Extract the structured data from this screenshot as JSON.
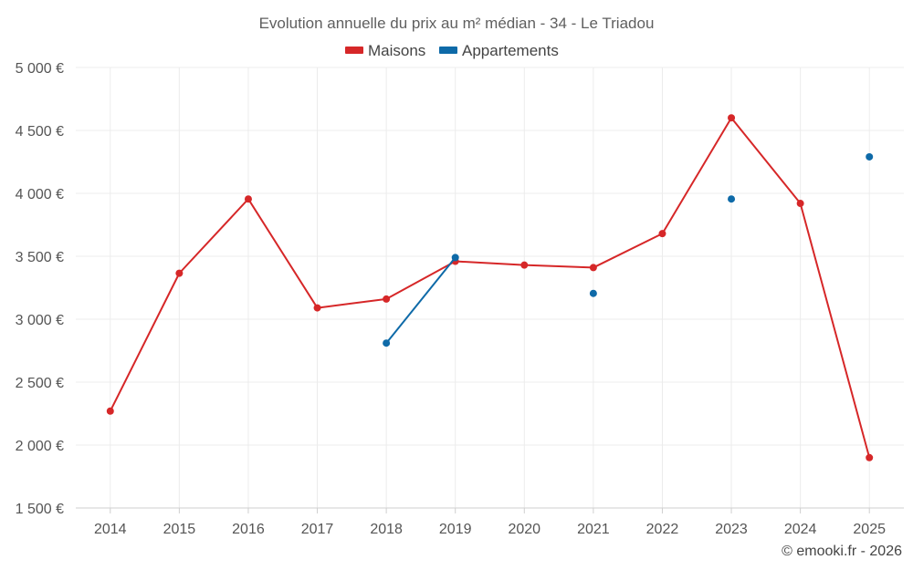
{
  "chart_data": {
    "type": "line",
    "title": "Evolution annuelle du prix au m² médian - 34 - Le Triadou",
    "categories": [
      "2014",
      "2015",
      "2016",
      "2017",
      "2018",
      "2019",
      "2020",
      "2021",
      "2022",
      "2023",
      "2024",
      "2025"
    ],
    "y_ticks": [
      1500,
      2000,
      2500,
      3000,
      3500,
      4000,
      4500,
      5000
    ],
    "y_tick_labels": [
      "1 500 €",
      "2 000 €",
      "2 500 €",
      "3 000 €",
      "3 500 €",
      "4 000 €",
      "4 500 €",
      "5 000 €"
    ],
    "ylim": [
      1500,
      5000
    ],
    "grid": true,
    "legend_position": "top-center",
    "series": [
      {
        "name": "Maisons",
        "color": "#d62728",
        "values": [
          2270,
          3365,
          3955,
          3090,
          3160,
          3460,
          3430,
          3410,
          3680,
          4600,
          3920,
          1900
        ]
      },
      {
        "name": "Appartements",
        "color": "#0e6aa8",
        "values": [
          null,
          null,
          null,
          null,
          2810,
          3490,
          null,
          3205,
          null,
          3955,
          null,
          4290
        ]
      }
    ]
  },
  "credit": "© emooki.fr - 2026"
}
